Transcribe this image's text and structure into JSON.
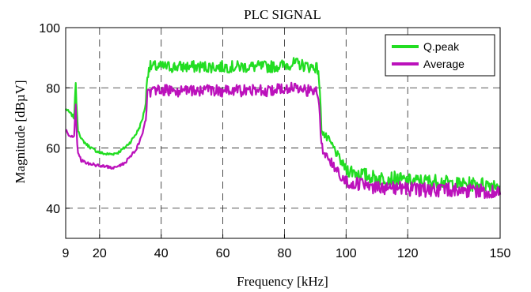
{
  "chart_data": {
    "type": "line",
    "title": "PLC SIGNAL",
    "xlabel": "Frequency [kHz]",
    "ylabel": "Magnitude [dBµV]",
    "xlim": [
      9,
      150
    ],
    "ylim": [
      30,
      100
    ],
    "x_ticks": [
      9,
      20,
      40,
      60,
      80,
      100,
      120,
      150
    ],
    "y_ticks": [
      40,
      60,
      80,
      100
    ],
    "grid": true,
    "legend_position": "top-right",
    "series": [
      {
        "name": "Q.peak",
        "color": "#22dd22",
        "x": [
          9,
          10,
          11,
          11.8,
          12.2,
          12.6,
          13,
          13.5,
          14,
          15,
          16,
          18,
          20,
          22,
          24,
          26,
          28,
          30,
          32,
          33,
          34,
          35,
          35.5,
          36,
          38,
          40,
          45,
          50,
          55,
          60,
          65,
          70,
          75,
          80,
          82,
          84,
          86,
          88,
          90,
          91,
          91.5,
          92,
          93,
          94,
          96,
          98,
          100,
          103,
          106,
          110,
          115,
          120,
          125,
          130,
          135,
          140,
          145,
          150
        ],
        "y": [
          73,
          72,
          71,
          70,
          83,
          72,
          66,
          65,
          63,
          62,
          61,
          59.5,
          58.5,
          58,
          58,
          58.5,
          60,
          62,
          65,
          67,
          70,
          75,
          84,
          87,
          87,
          87,
          87,
          87,
          87,
          87,
          87,
          87,
          87,
          87.5,
          88,
          88,
          87.5,
          87,
          87,
          86,
          78,
          67,
          64,
          63,
          60,
          56,
          53,
          52,
          51,
          50,
          50,
          49,
          49,
          49,
          48,
          48,
          48,
          48
        ]
      },
      {
        "name": "Average",
        "color": "#bb11bb",
        "x": [
          9,
          10,
          11,
          11.8,
          12.2,
          12.6,
          13,
          13.5,
          14,
          15,
          16,
          18,
          20,
          22,
          24,
          26,
          28,
          30,
          32,
          33,
          34,
          35,
          35.5,
          36,
          38,
          40,
          45,
          50,
          55,
          60,
          65,
          70,
          75,
          80,
          82,
          84,
          86,
          88,
          90,
          91,
          91.5,
          92,
          93,
          94,
          96,
          98,
          100,
          103,
          106,
          110,
          115,
          120,
          125,
          130,
          135,
          140,
          145,
          150
        ],
        "y": [
          66,
          64.5,
          64,
          63.5,
          76,
          64,
          58,
          57,
          56,
          55.5,
          55,
          54.5,
          54,
          54,
          53.5,
          54,
          55,
          57,
          60,
          62,
          65,
          70,
          78,
          79,
          79,
          79,
          79,
          79,
          79,
          79,
          79,
          79,
          79,
          79.5,
          80,
          80,
          79.5,
          79,
          79,
          78,
          70,
          61,
          58,
          57,
          54,
          51,
          49,
          48,
          47.5,
          47,
          47,
          46.5,
          46,
          46,
          46,
          46,
          45.5,
          45
        ]
      }
    ]
  }
}
